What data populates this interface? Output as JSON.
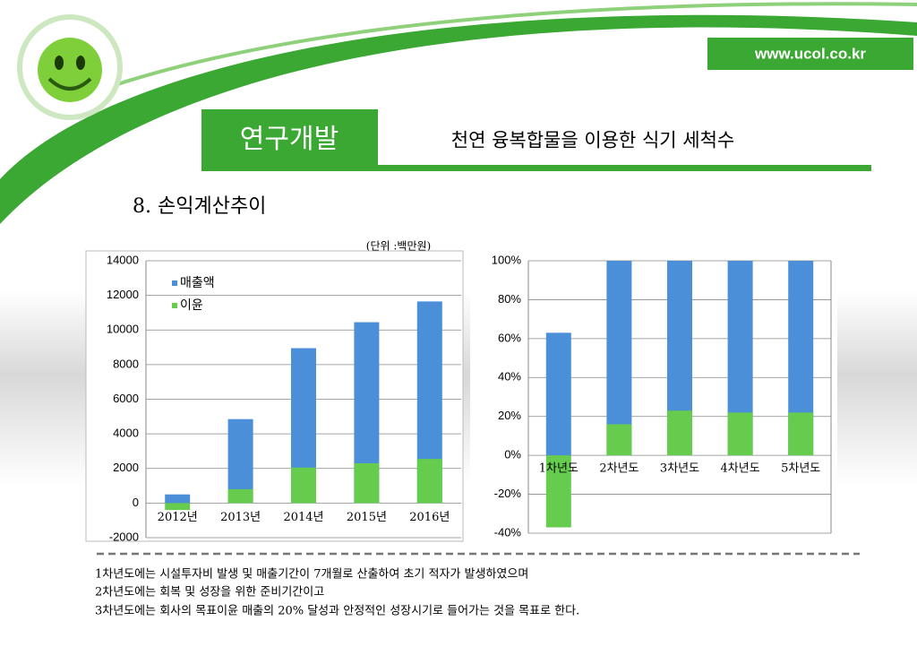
{
  "header": {
    "section": "연구개발",
    "subtitle": "천연 융복합물을 이용한  식기 세척수",
    "url": "www.ucol.co.kr",
    "heading": "8. 손익계산추이",
    "unit": "(단위 :백만원)"
  },
  "chart_data": [
    {
      "type": "bar",
      "categories": [
        "2012년",
        "2013년",
        "2014년",
        "2015년",
        "2016년"
      ],
      "series": [
        {
          "name": "매출액",
          "color": "#4a8fd8",
          "values": [
            500,
            4850,
            8950,
            10450,
            11650
          ]
        },
        {
          "name": "이윤",
          "color": "#66cc4d",
          "values": [
            -400,
            800,
            2050,
            2300,
            2550
          ]
        }
      ],
      "ylim": [
        -2000,
        14000
      ],
      "yticks": [
        -2000,
        0,
        2000,
        4000,
        6000,
        8000,
        10000,
        12000,
        14000
      ],
      "grid": true,
      "legend": "top-left"
    },
    {
      "type": "bar",
      "categories": [
        "1차년도",
        "2차년도",
        "3차년도",
        "4차년도",
        "5차년도"
      ],
      "series": [
        {
          "color": "#4a8fd8",
          "values": [
            63,
            100,
            100,
            100,
            100
          ]
        },
        {
          "color": "#66cc4d",
          "values": [
            -37,
            16,
            23,
            22,
            22
          ]
        }
      ],
      "ylim": [
        -40,
        100
      ],
      "yticks": [
        {
          "value": -40,
          "label": "-40%"
        },
        {
          "value": -20,
          "label": "-20%"
        },
        {
          "value": 0,
          "label": "0%"
        },
        {
          "value": 20,
          "label": "20%"
        },
        {
          "value": 40,
          "label": "40%"
        },
        {
          "value": 60,
          "label": "60%"
        },
        {
          "value": 80,
          "label": "80%"
        },
        {
          "value": 100,
          "label": "100%"
        }
      ],
      "grid": true
    }
  ],
  "notes": [
    "1차년도에는 시설투자비 발생 및 매출기간이 7개월로 산출하여 초기 적자가 발생하였으며",
    "2차년도에는 회복 및 성장을 위한 준비기간이고",
    "3차년도에는 회사의 목표이윤 매출의 20% 달성과 안정적인 성장시기로 들어가는 것을 목표로 한다."
  ]
}
